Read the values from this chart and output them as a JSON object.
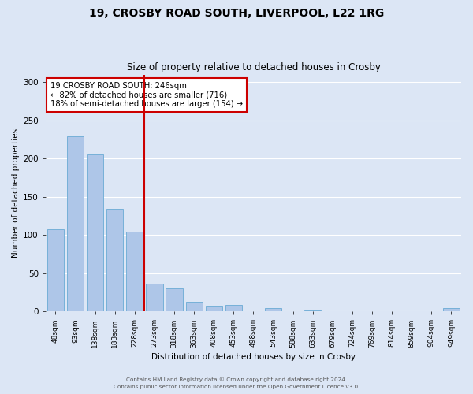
{
  "title1": "19, CROSBY ROAD SOUTH, LIVERPOOL, L22 1RG",
  "title2": "Size of property relative to detached houses in Crosby",
  "xlabel": "Distribution of detached houses by size in Crosby",
  "ylabel": "Number of detached properties",
  "bar_labels": [
    "48sqm",
    "93sqm",
    "138sqm",
    "183sqm",
    "228sqm",
    "273sqm",
    "318sqm",
    "363sqm",
    "408sqm",
    "453sqm",
    "498sqm",
    "543sqm",
    "588sqm",
    "633sqm",
    "679sqm",
    "724sqm",
    "769sqm",
    "814sqm",
    "859sqm",
    "904sqm",
    "949sqm"
  ],
  "bar_values": [
    107,
    229,
    205,
    134,
    104,
    36,
    30,
    13,
    7,
    8,
    0,
    4,
    0,
    1,
    0,
    0,
    0,
    0,
    0,
    0,
    4
  ],
  "bar_color": "#aec6e8",
  "bar_edge_color": "#6aaad4",
  "bg_color": "#dce6f5",
  "grid_color": "#ffffff",
  "annotation_box_color": "#ffffff",
  "annotation_border_color": "#cc0000",
  "vline_color": "#cc0000",
  "vline_x": 4.5,
  "annotation_text_line1": "19 CROSBY ROAD SOUTH: 246sqm",
  "annotation_text_line2": "← 82% of detached houses are smaller (716)",
  "annotation_text_line3": "18% of semi-detached houses are larger (154) →",
  "ylim": [
    0,
    310
  ],
  "yticks": [
    0,
    50,
    100,
    150,
    200,
    250,
    300
  ],
  "footer1": "Contains HM Land Registry data © Crown copyright and database right 2024.",
  "footer2": "Contains public sector information licensed under the Open Government Licence v3.0."
}
